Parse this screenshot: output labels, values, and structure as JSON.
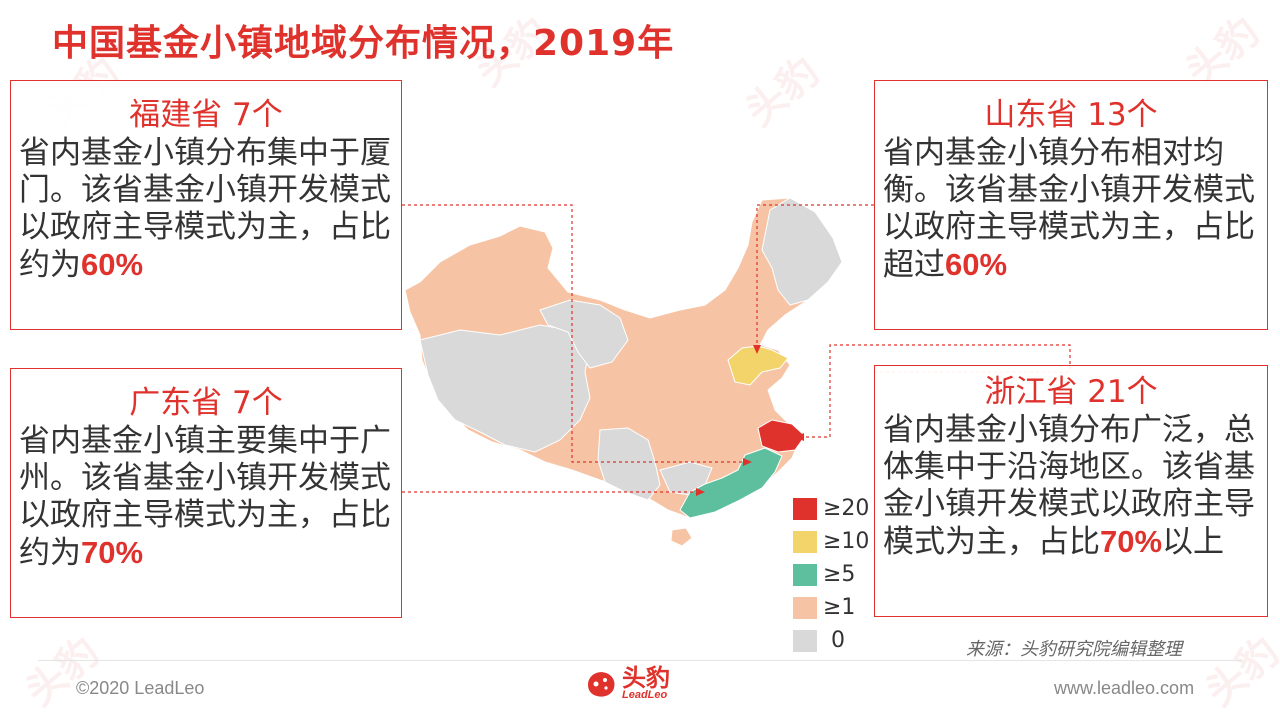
{
  "title": "中国基金小镇地域分布情况，2019年",
  "cards": {
    "fujian": {
      "head": "福建省 7个",
      "body": "省内基金小镇分布集中于厦门。该省基金小镇开发模式以政府主导模式为主，占比约为",
      "pct": "60%",
      "tail": ""
    },
    "guangdong": {
      "head": "广东省 7个",
      "body": "省内基金小镇主要集中于广州。该省基金小镇开发模式以政府主导模式为主，占比约为",
      "pct": "70%",
      "tail": ""
    },
    "shandong": {
      "head": "山东省 13个",
      "body": "省内基金小镇分布相对均衡。该省基金小镇开发模式以政府主导模式为主，占比超过",
      "pct": "60%",
      "tail": ""
    },
    "zhejiang": {
      "head": "浙江省 21个",
      "body": "省内基金小镇分布广泛，总体集中于沿海地区。该省基金小镇开发模式以政府主导模式为主，占比",
      "pct": "70%",
      "tail": "以上"
    }
  },
  "legend": [
    {
      "label": "≥20",
      "color": "#e0322c"
    },
    {
      "label": "≥10",
      "color": "#f2d46a"
    },
    {
      "label": "≥5",
      "color": "#5dbf9e"
    },
    {
      "label": "≥1",
      "color": "#f6c4a4"
    },
    {
      "label": "0",
      "color": "#d9d9d9"
    }
  ],
  "map_colors": {
    "base": "#f6c4a4",
    "none": "#d9d9d9",
    "zhejiang": "#e0322c",
    "shandong": "#f2d46a",
    "fujian_guangdong": "#5dbf9e"
  },
  "source": "来源：头豹研究院编辑整理",
  "footer": {
    "copyright": "©2020 LeadLeo",
    "website": "www.leadleo.com",
    "logo_cn": "头豹",
    "logo_en": "LeadLeo"
  },
  "watermark": {
    "cn": "头豹",
    "en": "LeadLeo"
  }
}
